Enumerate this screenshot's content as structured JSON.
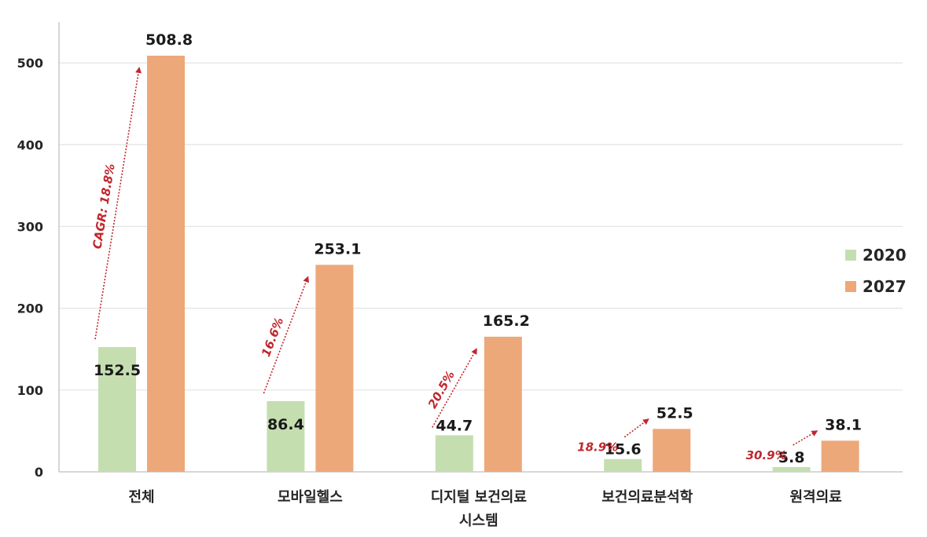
{
  "chart_data": {
    "type": "bar",
    "categories": [
      [
        "전체"
      ],
      [
        "모바일헬스"
      ],
      [
        "디지털  보건의료",
        "시스템"
      ],
      [
        "보건의료분석학"
      ],
      [
        "원격의료"
      ]
    ],
    "series": [
      {
        "name": "2020",
        "color": "#c5deb0",
        "values": [
          152.5,
          86.4,
          44.7,
          15.6,
          5.8
        ]
      },
      {
        "name": "2027",
        "color": "#eda87a",
        "values": [
          508.8,
          253.1,
          165.2,
          52.5,
          38.1
        ]
      }
    ],
    "data_labels": {
      "2020": [
        "152.5",
        "86.4",
        "44.7",
        "15.6",
        "5.8"
      ],
      "2027": [
        "508.8",
        "253.1",
        "165.2",
        "52.5",
        "38.1"
      ]
    },
    "yticks": [
      0,
      100,
      200,
      300,
      400,
      500
    ],
    "ylim": [
      0,
      550
    ],
    "grid": true,
    "legend_position": "right",
    "annotations": [
      {
        "category_index": 0,
        "text": "CAGR: 18.8%",
        "orientation": "rotated"
      },
      {
        "category_index": 1,
        "text": "16.6%",
        "orientation": "rotated"
      },
      {
        "category_index": 2,
        "text": "20.5%",
        "orientation": "rotated"
      },
      {
        "category_index": 3,
        "text": "18.9%",
        "orientation": "horizontal"
      },
      {
        "category_index": 4,
        "text": "30.9%",
        "orientation": "horizontal"
      }
    ],
    "annotation_color": "#c0272d",
    "axis_color": "#bfbfbf",
    "grid_color": "#e3e3e3"
  }
}
